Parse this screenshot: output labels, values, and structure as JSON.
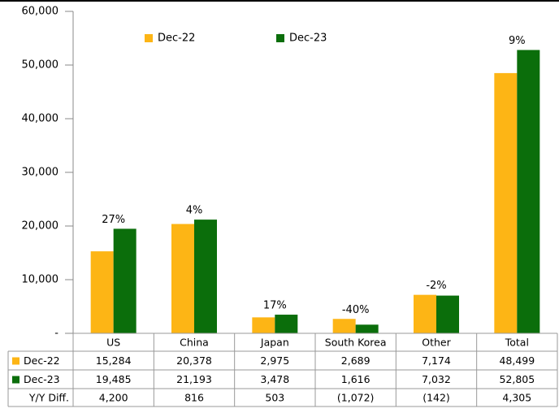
{
  "chart_data": {
    "type": "bar",
    "categories": [
      "US",
      "China",
      "Japan",
      "South Korea",
      "Other",
      "Total"
    ],
    "series": [
      {
        "name": "Dec-22",
        "color": "#FDB515",
        "values": [
          15284,
          20378,
          2975,
          2689,
          7174,
          48499
        ],
        "value_labels": [
          "15,284",
          "20,378",
          "2,975",
          "2,689",
          "7,174",
          "48,499"
        ]
      },
      {
        "name": "Dec-23",
        "color": "#0B6E0B",
        "values": [
          19485,
          21193,
          3478,
          1616,
          7032,
          52805
        ],
        "value_labels": [
          "19,485",
          "21,193",
          "3,478",
          "1,616",
          "7,032",
          "52,805"
        ]
      }
    ],
    "growth_labels": [
      "27%",
      "4%",
      "17%",
      "-40%",
      "-2%",
      "9%"
    ],
    "diff": {
      "name": "Y/Y Diff.",
      "labels": [
        "4,200",
        "816",
        "503",
        "(1,072)",
        "(142)",
        "4,305"
      ]
    },
    "ylim": [
      0,
      60000
    ],
    "yticks": [
      {
        "value": 0,
        "label": "-"
      },
      {
        "value": 10000,
        "label": "10,000"
      },
      {
        "value": 20000,
        "label": "20,000"
      },
      {
        "value": 30000,
        "label": "30,000"
      },
      {
        "value": 40000,
        "label": "40,000"
      },
      {
        "value": 50000,
        "label": "50,000"
      },
      {
        "value": 60000,
        "label": "60,000"
      }
    ],
    "grid": false,
    "legend": "top"
  }
}
